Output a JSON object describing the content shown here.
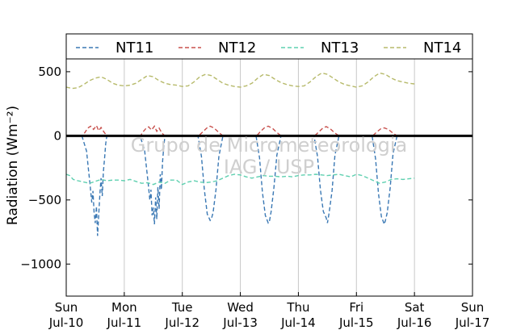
{
  "chart_data": {
    "type": "line",
    "ylabel": "Radiation (Wm⁻²)",
    "ylim": [
      -1250,
      600
    ],
    "yticks": [
      500,
      0,
      -500,
      -1000
    ],
    "ytick_labels": [
      "500",
      "0",
      "−500",
      "−1000"
    ],
    "xlim": [
      0,
      7
    ],
    "xticks": [
      0,
      1,
      2,
      3,
      4,
      5,
      6,
      7
    ],
    "xtick_labels": [
      [
        "Sun",
        "Jul-10"
      ],
      [
        "Mon",
        "Jul-11"
      ],
      [
        "Tue",
        "Jul-12"
      ],
      [
        "Wed",
        "Jul-13"
      ],
      [
        "Thu",
        "Jul-14"
      ],
      [
        "Fri",
        "Jul-15"
      ],
      [
        "Sat",
        "Jul-16"
      ],
      [
        "Sun",
        "Jul-17"
      ]
    ],
    "grid": "vertical",
    "legend_position": "top",
    "zero_line": true,
    "watermark": [
      "Grupo de Micrometeorologia",
      "IAG / USP"
    ],
    "series": [
      {
        "name": "NT11",
        "color": "#3a78b4",
        "x": [
          0.27,
          0.35,
          0.38,
          0.41,
          0.44,
          0.46,
          0.48,
          0.5,
          0.52,
          0.54,
          0.56,
          0.58,
          0.6,
          0.62,
          0.64,
          0.66,
          0.68,
          0.7,
          1.27,
          1.35,
          1.38,
          1.41,
          1.44,
          1.46,
          1.48,
          1.5,
          1.52,
          1.54,
          1.56,
          1.58,
          1.6,
          1.62,
          1.64,
          1.66,
          1.68,
          1.7,
          2.27,
          2.33,
          2.38,
          2.43,
          2.48,
          2.5,
          2.53,
          2.58,
          2.63,
          2.7,
          3.27,
          3.33,
          3.38,
          3.43,
          3.48,
          3.5,
          3.53,
          3.58,
          3.63,
          3.7,
          4.27,
          4.33,
          4.38,
          4.43,
          4.48,
          4.5,
          4.53,
          4.58,
          4.63,
          4.7,
          5.27,
          5.33,
          5.38,
          5.43,
          5.48,
          5.5,
          5.53,
          5.58,
          5.63,
          5.7
        ],
        "y": [
          0,
          -120,
          -250,
          -380,
          -520,
          -430,
          -600,
          -680,
          -550,
          -780,
          -620,
          -450,
          -330,
          -470,
          -280,
          -180,
          -60,
          0,
          0,
          -110,
          -240,
          -360,
          -500,
          -420,
          -620,
          -560,
          -690,
          -480,
          -650,
          -400,
          -570,
          -300,
          -420,
          -200,
          -90,
          0,
          0,
          -160,
          -420,
          -610,
          -660,
          -650,
          -600,
          -420,
          -160,
          0,
          0,
          -170,
          -440,
          -620,
          -680,
          -670,
          -590,
          -400,
          -150,
          0,
          0,
          -160,
          -420,
          -590,
          -640,
          -680,
          -600,
          -430,
          -150,
          0,
          0,
          -180,
          -450,
          -630,
          -690,
          -660,
          -600,
          -410,
          -140,
          0
        ]
      },
      {
        "name": "NT12",
        "color": "#c8514d",
        "x": [
          0,
          0.28,
          0.32,
          0.37,
          0.42,
          0.47,
          0.52,
          0.56,
          0.6,
          0.65,
          0.7,
          1.0,
          1.28,
          1.32,
          1.37,
          1.42,
          1.47,
          1.52,
          1.56,
          1.6,
          1.65,
          1.7,
          2.0,
          2.28,
          2.35,
          2.42,
          2.48,
          2.55,
          2.62,
          2.7,
          3.0,
          3.28,
          3.35,
          3.42,
          3.48,
          3.55,
          3.62,
          3.7,
          4.0,
          4.28,
          4.35,
          4.42,
          4.48,
          4.55,
          4.62,
          4.7,
          5.0,
          5.28,
          5.35,
          5.42,
          5.48,
          5.55,
          5.62,
          5.7,
          6.0
        ],
        "y": [
          0,
          0,
          25,
          60,
          75,
          50,
          80,
          40,
          65,
          30,
          0,
          0,
          0,
          30,
          55,
          70,
          45,
          75,
          35,
          60,
          20,
          0,
          0,
          0,
          30,
          60,
          75,
          60,
          30,
          0,
          0,
          0,
          35,
          65,
          75,
          60,
          30,
          0,
          0,
          0,
          30,
          60,
          72,
          55,
          25,
          0,
          0,
          0,
          30,
          55,
          62,
          50,
          25,
          0,
          0
        ]
      },
      {
        "name": "NT13",
        "color": "#5fd0b0",
        "x": [
          0,
          0.06,
          0.12,
          0.2,
          0.3,
          0.4,
          0.5,
          0.6,
          0.7,
          0.8,
          0.9,
          1.0,
          1.1,
          1.2,
          1.3,
          1.4,
          1.5,
          1.6,
          1.7,
          1.8,
          1.9,
          2.0,
          2.1,
          2.2,
          2.3,
          2.4,
          2.5,
          2.6,
          2.7,
          2.8,
          2.9,
          3.0,
          3.1,
          3.2,
          3.3,
          3.4,
          3.5,
          3.6,
          3.7,
          3.8,
          3.9,
          4.0,
          4.1,
          4.2,
          4.3,
          4.4,
          4.5,
          4.6,
          4.7,
          4.8,
          4.9,
          5.0,
          5.1,
          5.2,
          5.3,
          5.4,
          5.5,
          5.6,
          5.7,
          5.8,
          5.9,
          6.0
        ],
        "y": [
          -300,
          -310,
          -340,
          -350,
          -360,
          -370,
          -355,
          -340,
          -350,
          -345,
          -345,
          -350,
          -340,
          -355,
          -370,
          -365,
          -380,
          -360,
          -370,
          -345,
          -345,
          -380,
          -360,
          -350,
          -360,
          -365,
          -360,
          -350,
          -330,
          -310,
          -300,
          -305,
          -320,
          -330,
          -320,
          -310,
          -315,
          -315,
          -320,
          -315,
          -320,
          -310,
          -305,
          -305,
          -300,
          -305,
          -310,
          -305,
          -300,
          -310,
          -320,
          -300,
          -310,
          -330,
          -350,
          -370,
          -360,
          -340,
          -335,
          -340,
          -335,
          -330
        ]
      },
      {
        "name": "NT14",
        "color": "#b7ba6b",
        "x": [
          0,
          0.1,
          0.2,
          0.3,
          0.4,
          0.5,
          0.6,
          0.7,
          0.8,
          0.9,
          1.0,
          1.1,
          1.2,
          1.3,
          1.4,
          1.5,
          1.6,
          1.7,
          1.8,
          1.9,
          2.0,
          2.1,
          2.2,
          2.3,
          2.4,
          2.5,
          2.6,
          2.7,
          2.8,
          2.9,
          3.0,
          3.1,
          3.2,
          3.3,
          3.4,
          3.5,
          3.6,
          3.7,
          3.8,
          3.9,
          4.0,
          4.1,
          4.2,
          4.3,
          4.4,
          4.5,
          4.6,
          4.7,
          4.8,
          4.9,
          5.0,
          5.1,
          5.2,
          5.3,
          5.4,
          5.5,
          5.6,
          5.7,
          5.8,
          5.9,
          6.0
        ],
        "y": [
          380,
          370,
          375,
          400,
          430,
          450,
          460,
          440,
          410,
          395,
          390,
          395,
          410,
          440,
          470,
          460,
          430,
          410,
          400,
          395,
          385,
          390,
          420,
          460,
          480,
          470,
          440,
          410,
          395,
          385,
          380,
          390,
          410,
          450,
          480,
          470,
          440,
          415,
          400,
          390,
          385,
          390,
          420,
          460,
          490,
          480,
          450,
          420,
          400,
          390,
          380,
          390,
          420,
          460,
          490,
          480,
          450,
          430,
          420,
          410,
          405
        ]
      }
    ]
  }
}
